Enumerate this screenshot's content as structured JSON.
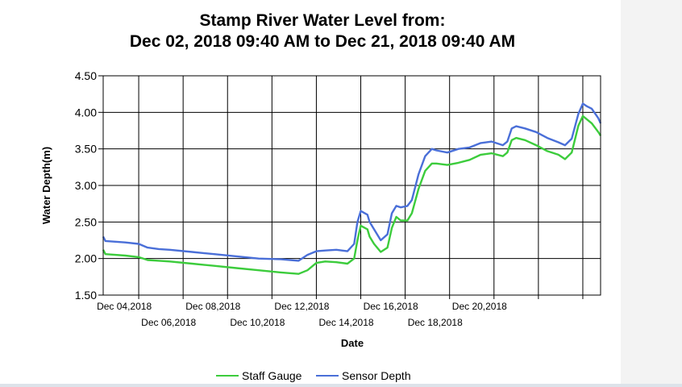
{
  "chart_data": {
    "type": "line",
    "title": [
      "Stamp River Water Level from:",
      "Dec 02, 2018 09:40 AM to Dec 21, 2018 09:40 AM"
    ],
    "xlabel": "Date",
    "ylabel": "Water Depth(m)",
    "ylim": [
      1.5,
      4.5
    ],
    "yticks": [
      "1.50",
      "2.00",
      "2.50",
      "3.00",
      "3.50",
      "4.00",
      "4.50"
    ],
    "xticks_top": [
      "Dec 04,2018",
      "Dec 08,2018",
      "Dec 12,2018",
      "Dec 16,2018",
      "Dec 20,2018"
    ],
    "xticks_bottom": [
      "Dec 06,2018",
      "Dec 10,2018",
      "Dec 14,2018",
      "Dec 18,2018"
    ],
    "grid": true,
    "legend_position": "bottom",
    "x_units": "days since Dec 02, 2018 09:40 AM",
    "xlim": [
      0,
      19
    ],
    "series": [
      {
        "name": "Staff Gauge",
        "color": "#3ccc3c",
        "points": [
          [
            0.0,
            2.12
          ],
          [
            0.1,
            2.06
          ],
          [
            1.0,
            2.04
          ],
          [
            1.6,
            2.02
          ],
          [
            2.0,
            1.98
          ],
          [
            2.5,
            1.97
          ],
          [
            3.0,
            1.96
          ],
          [
            4.0,
            1.93
          ],
          [
            5.0,
            1.9
          ],
          [
            6.0,
            1.87
          ],
          [
            7.0,
            1.84
          ],
          [
            8.0,
            1.81
          ],
          [
            8.8,
            1.79
          ],
          [
            9.2,
            1.84
          ],
          [
            9.6,
            1.94
          ],
          [
            10.0,
            1.96
          ],
          [
            10.5,
            1.95
          ],
          [
            11.0,
            1.93
          ],
          [
            11.3,
            2.0
          ],
          [
            11.45,
            2.25
          ],
          [
            11.6,
            2.45
          ],
          [
            11.9,
            2.4
          ],
          [
            12.0,
            2.3
          ],
          [
            12.2,
            2.2
          ],
          [
            12.5,
            2.09
          ],
          [
            12.8,
            2.15
          ],
          [
            13.0,
            2.42
          ],
          [
            13.2,
            2.57
          ],
          [
            13.4,
            2.52
          ],
          [
            13.7,
            2.52
          ],
          [
            13.9,
            2.62
          ],
          [
            14.2,
            2.95
          ],
          [
            14.5,
            3.2
          ],
          [
            14.8,
            3.3
          ],
          [
            15.0,
            3.3
          ],
          [
            15.5,
            3.28
          ],
          [
            16.0,
            3.31
          ],
          [
            16.5,
            3.35
          ],
          [
            17.0,
            3.42
          ],
          [
            17.5,
            3.44
          ],
          [
            18.0,
            3.4
          ],
          [
            18.2,
            3.45
          ],
          [
            18.4,
            3.62
          ],
          [
            18.6,
            3.65
          ],
          [
            19.0,
            3.62
          ],
          [
            19.5,
            3.55
          ],
          [
            20.0,
            3.47
          ],
          [
            20.5,
            3.42
          ],
          [
            20.8,
            3.36
          ],
          [
            21.1,
            3.45
          ],
          [
            21.4,
            3.82
          ],
          [
            21.6,
            3.95
          ],
          [
            21.8,
            3.9
          ],
          [
            22.0,
            3.85
          ],
          [
            22.3,
            3.73
          ],
          [
            22.4,
            3.68
          ]
        ]
      },
      {
        "name": "Sensor Depth",
        "color": "#4a6fd8",
        "points": [
          [
            0.0,
            2.3
          ],
          [
            0.1,
            2.24
          ],
          [
            1.0,
            2.22
          ],
          [
            1.6,
            2.2
          ],
          [
            2.0,
            2.15
          ],
          [
            2.5,
            2.13
          ],
          [
            3.0,
            2.12
          ],
          [
            4.0,
            2.09
          ],
          [
            5.0,
            2.06
          ],
          [
            6.0,
            2.03
          ],
          [
            7.0,
            2.0
          ],
          [
            8.0,
            1.99
          ],
          [
            8.8,
            1.97
          ],
          [
            9.2,
            2.05
          ],
          [
            9.6,
            2.1
          ],
          [
            10.0,
            2.11
          ],
          [
            10.5,
            2.12
          ],
          [
            11.0,
            2.1
          ],
          [
            11.3,
            2.2
          ],
          [
            11.45,
            2.5
          ],
          [
            11.6,
            2.65
          ],
          [
            11.9,
            2.6
          ],
          [
            12.0,
            2.5
          ],
          [
            12.2,
            2.4
          ],
          [
            12.5,
            2.25
          ],
          [
            12.8,
            2.33
          ],
          [
            13.0,
            2.62
          ],
          [
            13.2,
            2.72
          ],
          [
            13.4,
            2.7
          ],
          [
            13.7,
            2.72
          ],
          [
            13.9,
            2.8
          ],
          [
            14.2,
            3.15
          ],
          [
            14.5,
            3.4
          ],
          [
            14.8,
            3.5
          ],
          [
            15.0,
            3.48
          ],
          [
            15.5,
            3.45
          ],
          [
            16.0,
            3.5
          ],
          [
            16.5,
            3.52
          ],
          [
            17.0,
            3.58
          ],
          [
            17.5,
            3.6
          ],
          [
            18.0,
            3.55
          ],
          [
            18.2,
            3.6
          ],
          [
            18.4,
            3.78
          ],
          [
            18.6,
            3.81
          ],
          [
            19.0,
            3.78
          ],
          [
            19.5,
            3.73
          ],
          [
            20.0,
            3.65
          ],
          [
            20.5,
            3.59
          ],
          [
            20.8,
            3.55
          ],
          [
            21.1,
            3.64
          ],
          [
            21.4,
            3.98
          ],
          [
            21.6,
            4.12
          ],
          [
            21.8,
            4.08
          ],
          [
            22.0,
            4.05
          ],
          [
            22.3,
            3.92
          ],
          [
            22.4,
            3.85
          ]
        ]
      }
    ]
  }
}
